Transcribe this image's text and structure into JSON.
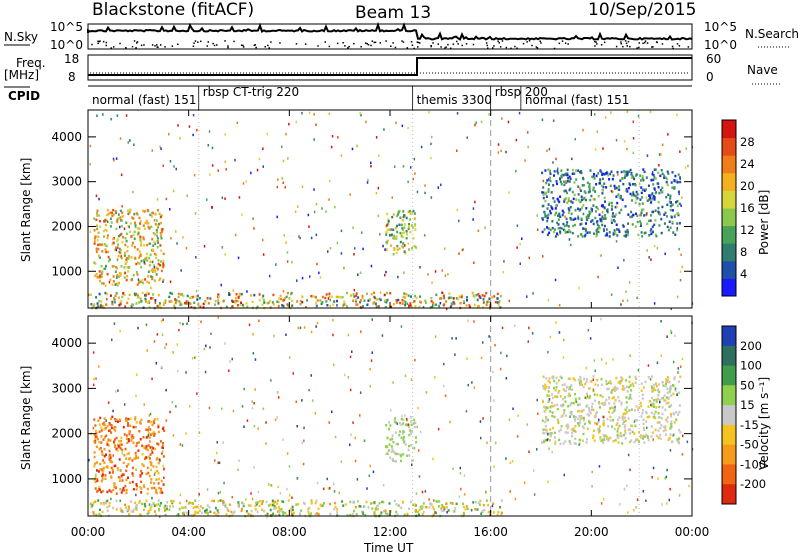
{
  "header": {
    "station": "Blackstone (fitACF)",
    "beam": "Beam 13",
    "date": "10/Sep/2015"
  },
  "top_panels": {
    "nsky_label": "N.Sky",
    "nsky_ticks": [
      "10^5",
      "10^0"
    ],
    "nsearch_label": "N.Search",
    "nsearch_ticks": [
      "10^5",
      "10^0"
    ],
    "freq_label": "Freq.",
    "freq_unit": "[MHz]",
    "freq_ticks": [
      "18",
      "8"
    ],
    "nave_label": "Nave",
    "nave_ticks": [
      "60",
      "0"
    ],
    "cpid_label": "CPID"
  },
  "modes": [
    {
      "label": "normal (fast) 151",
      "start_h": 0.0
    },
    {
      "label": "rbsp CT-trig 220",
      "start_h": 4.4
    },
    {
      "label": "themis 3300",
      "start_h": 12.9
    },
    {
      "label": "rbsp 200",
      "start_h": 16.0
    },
    {
      "label": "normal (fast) 151",
      "start_h": 17.2
    }
  ],
  "chart_data": [
    {
      "type": "heatmap",
      "quantity": "Power",
      "ylabel": "Slant Range [km]",
      "xlabel": "Time UT",
      "x_ticks": [
        "00:00",
        "04:00",
        "08:00",
        "12:00",
        "16:00",
        "20:00",
        "00:00"
      ],
      "y_ticks": [
        "1000",
        "2000",
        "3000",
        "4000"
      ],
      "ylim": [
        180,
        4600
      ],
      "xlim_hours": [
        0,
        24
      ],
      "colorbar_label": "Power [dB]",
      "colorbar_ticks": [
        "4",
        "8",
        "12",
        "16",
        "20",
        "24",
        "28"
      ],
      "colorbar_colors": [
        "#1a1aff",
        "#1f4fa8",
        "#2e7d6e",
        "#48a35a",
        "#8cc84b",
        "#d6d63a",
        "#f5b022",
        "#f07c1a",
        "#e54b14",
        "#d4140f"
      ],
      "regions": [
        {
          "t": [
            0.2,
            3.0
          ],
          "r": [
            700,
            2400
          ],
          "level": [
            3,
            8
          ]
        },
        {
          "t": [
            11.8,
            13.0
          ],
          "r": [
            1400,
            2400
          ],
          "level": [
            2,
            6
          ]
        },
        {
          "t": [
            18.0,
            23.5
          ],
          "r": [
            1800,
            3300
          ],
          "level": [
            0,
            4
          ]
        },
        {
          "t": [
            0.0,
            16.5
          ],
          "r": [
            200,
            550
          ],
          "level": [
            1,
            9
          ]
        }
      ]
    },
    {
      "type": "heatmap",
      "quantity": "Velocity",
      "ylabel": "Slant Range [km]",
      "xlabel": "Time UT",
      "x_ticks": [
        "00:00",
        "04:00",
        "08:00",
        "12:00",
        "16:00",
        "20:00",
        "00:00"
      ],
      "y_ticks": [
        "1000",
        "2000",
        "3000",
        "4000"
      ],
      "ylim": [
        180,
        4600
      ],
      "xlim_hours": [
        0,
        24
      ],
      "colorbar_label": "Velocity [m s⁻¹]",
      "colorbar_ticks": [
        "200",
        "100",
        "50",
        "15",
        "-15",
        "-50",
        "-100",
        "-200"
      ],
      "colorbar_colors": [
        "#1f3fb5",
        "#2e6f5e",
        "#3f9d4c",
        "#8fd14f",
        "#c8c8c8",
        "#f5c31f",
        "#f59a1a",
        "#f06414",
        "#e02a10"
      ],
      "regions": [
        {
          "t": [
            0.2,
            3.0
          ],
          "r": [
            700,
            2400
          ],
          "level": [
            5,
            8
          ]
        },
        {
          "t": [
            11.8,
            13.0
          ],
          "r": [
            1400,
            2400
          ],
          "level": [
            3,
            4
          ]
        },
        {
          "t": [
            18.0,
            23.5
          ],
          "r": [
            1800,
            3300
          ],
          "level": [
            3,
            5
          ]
        },
        {
          "t": [
            0.0,
            16.5
          ],
          "r": [
            200,
            550
          ],
          "level": [
            2,
            6
          ]
        }
      ]
    }
  ]
}
